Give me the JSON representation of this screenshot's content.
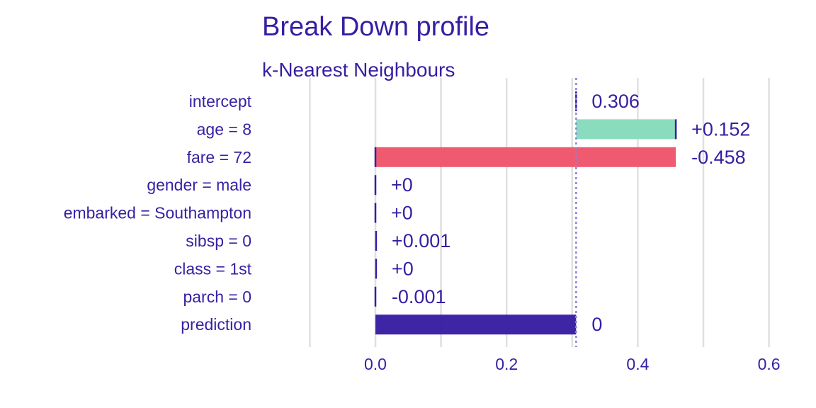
{
  "chart_data": {
    "type": "bar",
    "title": "Break Down profile",
    "subtitle": "k-Nearest Neighbours",
    "xlim": [
      -0.1,
      0.6
    ],
    "xticks": [
      0.0,
      0.2,
      0.4,
      0.6
    ],
    "xtick_labels": [
      "0.0",
      "0.2",
      "0.4",
      "0.6"
    ],
    "grid": true,
    "intercept_line": 0.306,
    "colors": {
      "positive": "#8bdcbe",
      "negative": "#f05a71",
      "prediction": "#371ea3",
      "text": "#371ea3",
      "grid": "#e0e0e0"
    },
    "rows": [
      {
        "label": "intercept",
        "start": 0.306,
        "end": 0.306,
        "value_label": "0.306",
        "kind": "intercept"
      },
      {
        "label": "age = 8",
        "start": 0.306,
        "end": 0.458,
        "value_label": "+0.152",
        "kind": "positive"
      },
      {
        "label": "fare = 72",
        "start": 0.458,
        "end": 0.0,
        "value_label": "-0.458",
        "kind": "negative"
      },
      {
        "label": "gender = male",
        "start": 0.0,
        "end": 0.0,
        "value_label": "+0",
        "kind": "positive"
      },
      {
        "label": "embarked = Southampton",
        "start": 0.0,
        "end": 0.0,
        "value_label": "+0",
        "kind": "positive"
      },
      {
        "label": "sibsp = 0",
        "start": 0.0,
        "end": 0.001,
        "value_label": "+0.001",
        "kind": "positive"
      },
      {
        "label": "class = 1st",
        "start": 0.001,
        "end": 0.001,
        "value_label": "+0",
        "kind": "positive"
      },
      {
        "label": "parch = 0",
        "start": 0.001,
        "end": 0.0,
        "value_label": "-0.001",
        "kind": "negative"
      },
      {
        "label": "prediction",
        "start": 0.0,
        "end": 0.306,
        "value_label": "0",
        "kind": "prediction"
      }
    ]
  }
}
